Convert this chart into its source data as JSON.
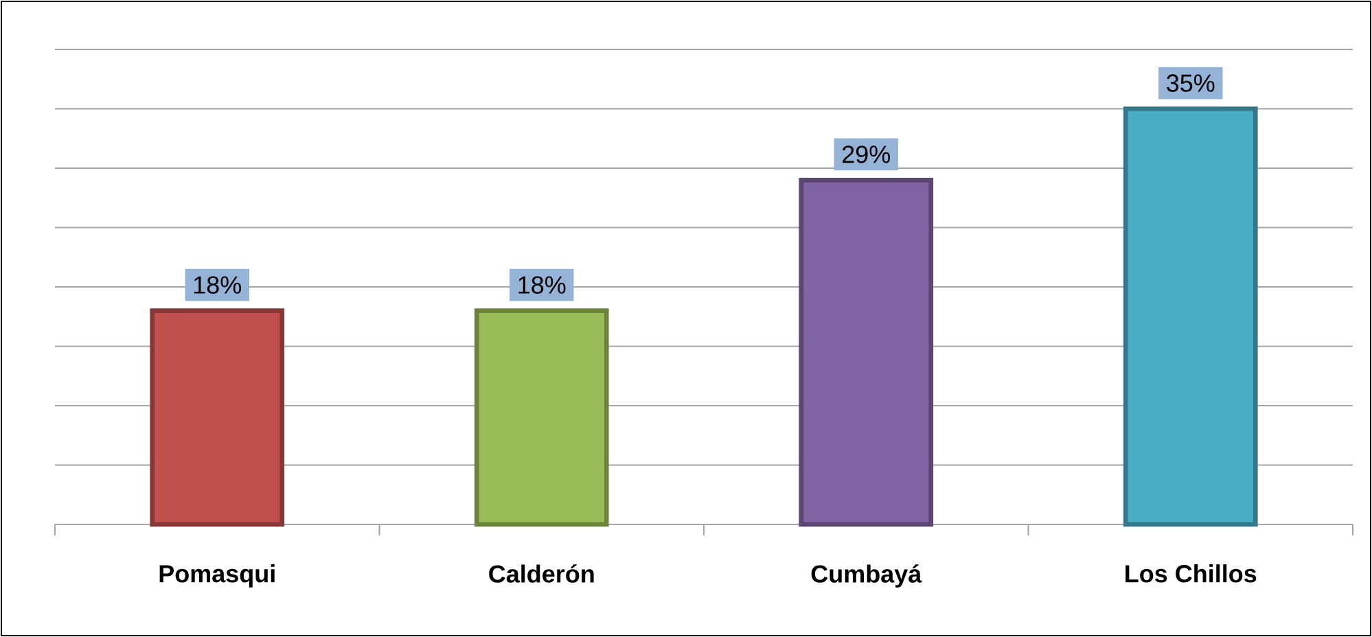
{
  "chart_data": {
    "type": "bar",
    "categories": [
      "Pomasqui",
      "Calderón",
      "Cumbayá",
      "Los Chillos"
    ],
    "values": [
      18,
      18,
      29,
      35
    ],
    "colors": [
      "#c0504d",
      "#9bbb59",
      "#8064a2",
      "#4bacc6"
    ],
    "value_labels": [
      "18%",
      "18%",
      "29%",
      "35%"
    ],
    "grid": "y",
    "tick_labels": "x"
  }
}
